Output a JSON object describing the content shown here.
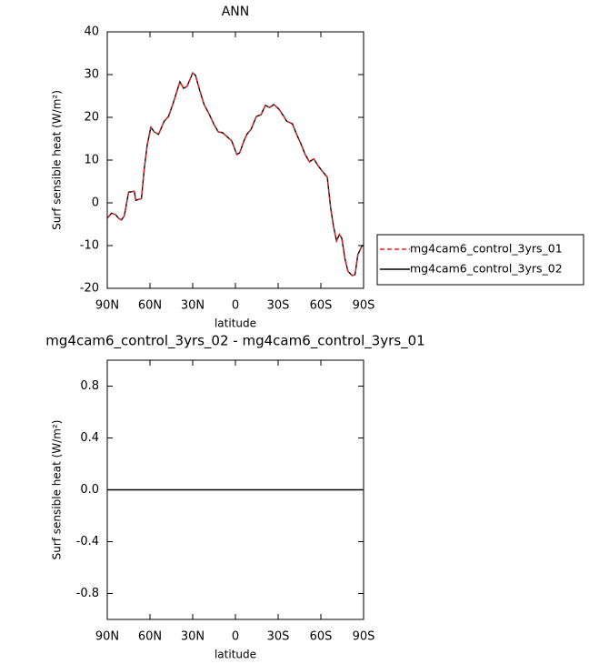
{
  "chart_data": [
    {
      "type": "line",
      "title": "ANN",
      "xlabel": "latitude",
      "ylabel": "Surf sensible heat (W/m²)",
      "x": [
        90,
        87,
        84,
        82,
        80,
        78,
        75,
        71,
        70,
        66,
        64,
        62,
        59.4,
        57,
        54,
        50,
        47,
        44,
        41,
        39,
        36.4,
        34,
        30,
        28,
        25,
        22,
        18.5,
        15,
        12,
        9,
        6,
        2.6,
        -1,
        -3,
        -6,
        -8,
        -11,
        -14.7,
        -18,
        -21,
        -24,
        -27,
        -30.6,
        -34,
        -36,
        -40,
        -43,
        -46,
        -49,
        -52,
        -55,
        -58,
        -61,
        -64.5,
        -67,
        -69,
        -71,
        -73,
        -74.7,
        -77,
        -79,
        -82,
        -84,
        -86,
        -89,
        -90
      ],
      "series": [
        {
          "name": "mg4cam6_control_3yrs_01",
          "color": "#d62728",
          "dash": true,
          "values": [
            -3.6,
            -2.4,
            -2.8,
            -3.6,
            -4,
            -3,
            2.5,
            2.7,
            0.6,
            1,
            8,
            13.4,
            17.7,
            16.6,
            16,
            19.1,
            20.2,
            23,
            26.2,
            28.3,
            26.8,
            27.2,
            30.4,
            29.8,
            26.2,
            23,
            20.8,
            18.3,
            16.6,
            16.4,
            15.5,
            14.5,
            11.3,
            11.7,
            14.5,
            16,
            17.2,
            20.2,
            20.6,
            22.8,
            22.3,
            23,
            21.9,
            20.2,
            19.1,
            18.5,
            16,
            13.8,
            11.3,
            9.6,
            10.3,
            8.7,
            7.4,
            6,
            -1.5,
            -5.7,
            -8.9,
            -7.4,
            -8.3,
            -13.2,
            -16,
            -17,
            -16.8,
            -12.1,
            -10,
            -10
          ]
        },
        {
          "name": "mg4cam6_control_3yrs_02",
          "color": "#000000",
          "dash": false,
          "values": [
            -3.6,
            -2.4,
            -2.8,
            -3.6,
            -4,
            -3,
            2.5,
            2.7,
            0.6,
            1,
            8,
            13.4,
            17.7,
            16.6,
            16,
            19.1,
            20.2,
            23,
            26.2,
            28.3,
            26.8,
            27.2,
            30.4,
            29.8,
            26.2,
            23,
            20.8,
            18.3,
            16.6,
            16.4,
            15.5,
            14.5,
            11.3,
            11.7,
            14.5,
            16,
            17.2,
            20.2,
            20.6,
            22.8,
            22.3,
            23,
            21.9,
            20.2,
            19.1,
            18.5,
            16,
            13.8,
            11.3,
            9.6,
            10.3,
            8.7,
            7.4,
            6,
            -1.5,
            -5.7,
            -8.9,
            -7.4,
            -8.3,
            -13.2,
            -16,
            -17,
            -16.8,
            -12.1,
            -10,
            -10
          ]
        }
      ],
      "xlim": [
        90,
        -90
      ],
      "xticks": [
        {
          "value": 90,
          "label": "90N"
        },
        {
          "value": 60,
          "label": "60N"
        },
        {
          "value": 30,
          "label": "30N"
        },
        0,
        {
          "value": -30,
          "label": "30S"
        },
        {
          "value": -60,
          "label": "60S"
        },
        {
          "value": -90,
          "label": "90S"
        }
      ],
      "ylim": [
        -20,
        40
      ],
      "yticks": [
        -20,
        -10,
        0,
        10,
        20,
        30,
        40
      ],
      "legend": "right"
    },
    {
      "type": "line",
      "title": "mg4cam6_control_3yrs_02 - mg4cam6_control_3yrs_01",
      "xlabel": "latitude",
      "ylabel": "Surf sensible heat (W/m²)",
      "x": [
        90,
        -90
      ],
      "series": [
        {
          "color": "#000000",
          "dash": false,
          "values": [
            0,
            0
          ]
        }
      ],
      "xlim": [
        90,
        -90
      ],
      "xticks": [
        {
          "value": 90,
          "label": "90N"
        },
        {
          "value": 60,
          "label": "60N"
        },
        {
          "value": 30,
          "label": "30N"
        },
        0,
        {
          "value": -30,
          "label": "30S"
        },
        {
          "value": -60,
          "label": "60S"
        },
        {
          "value": -90,
          "label": "90S"
        }
      ],
      "ylim": [
        -1,
        1
      ],
      "yticks": [
        -0.8,
        -0.4,
        {
          "value": 0,
          "label": "0.0"
        },
        0.4,
        0.8
      ]
    }
  ]
}
